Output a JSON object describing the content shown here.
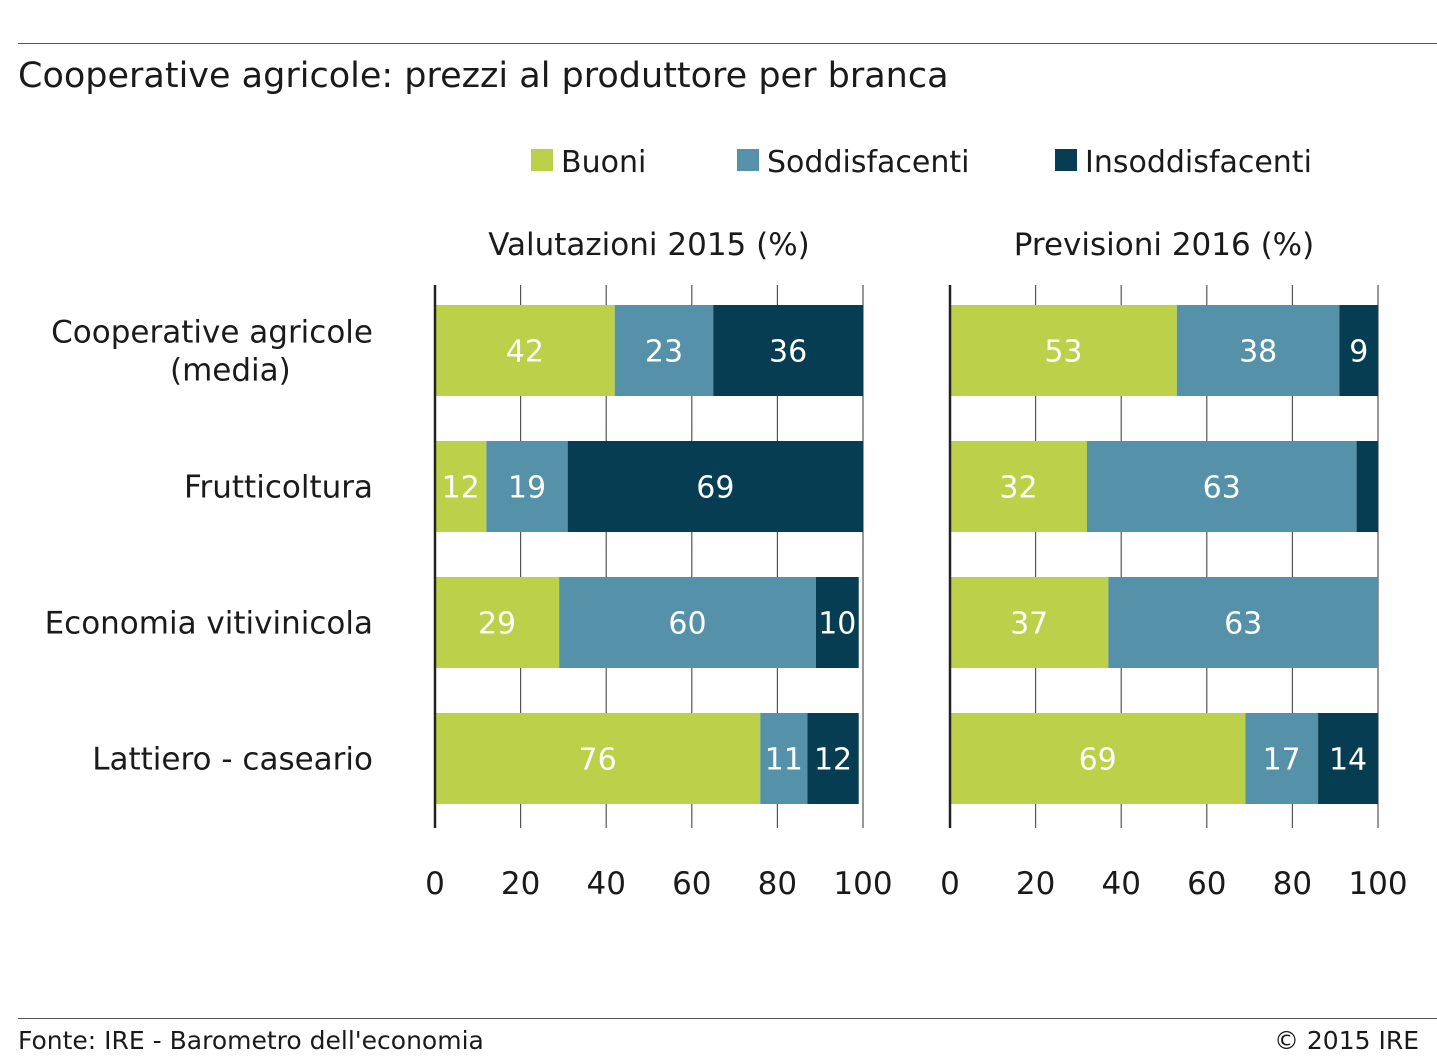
{
  "title": "Cooperative agricole: prezzi al produttore per branca",
  "footer": {
    "source": "Fonte: IRE - Barometro dell'economia",
    "copyright": "© 2015 IRE"
  },
  "chart_data": {
    "type": "bar",
    "orientation": "horizontal",
    "stacked": true,
    "categories": [
      "Cooperative agricole\n(media)",
      "Frutticoltura",
      "Economia vitivinicola",
      "Lattiero - caseario"
    ],
    "legend": {
      "placement": "top-right",
      "entries": [
        {
          "name": "Buoni",
          "color": "#bcd04a"
        },
        {
          "name": "Soddisfacenti",
          "color": "#5592a9"
        },
        {
          "name": "Insoddisfacenti",
          "color": "#063d52"
        }
      ]
    },
    "xlim": [
      0,
      100
    ],
    "ticks": [
      0,
      20,
      40,
      60,
      80,
      100
    ],
    "grid": true,
    "panels": [
      {
        "title": "Valutazioni 2015 (%)",
        "series": [
          {
            "name": "Buoni",
            "values": [
              42,
              12,
              29,
              76
            ],
            "labels": [
              "42",
              "12",
              "29",
              "76"
            ]
          },
          {
            "name": "Soddisfacenti",
            "values": [
              23,
              19,
              60,
              11
            ],
            "labels": [
              "23",
              "19",
              "60",
              "11"
            ]
          },
          {
            "name": "Insoddisfacenti",
            "values": [
              36,
              69,
              10,
              12
            ],
            "labels": [
              "36",
              "69",
              "10",
              "12"
            ]
          }
        ]
      },
      {
        "title": "Previsioni 2016 (%)",
        "series": [
          {
            "name": "Buoni",
            "values": [
              53,
              32,
              37,
              69
            ],
            "labels": [
              "53",
              "32",
              "37",
              "69"
            ]
          },
          {
            "name": "Soddisfacenti",
            "values": [
              38,
              63,
              63,
              17
            ],
            "labels": [
              "38",
              "63",
              "63",
              "17"
            ]
          },
          {
            "name": "Insoddisfacenti",
            "values": [
              9,
              5,
              0,
              14
            ],
            "labels": [
              "9",
              "",
              "",
              "14"
            ]
          }
        ]
      }
    ]
  }
}
